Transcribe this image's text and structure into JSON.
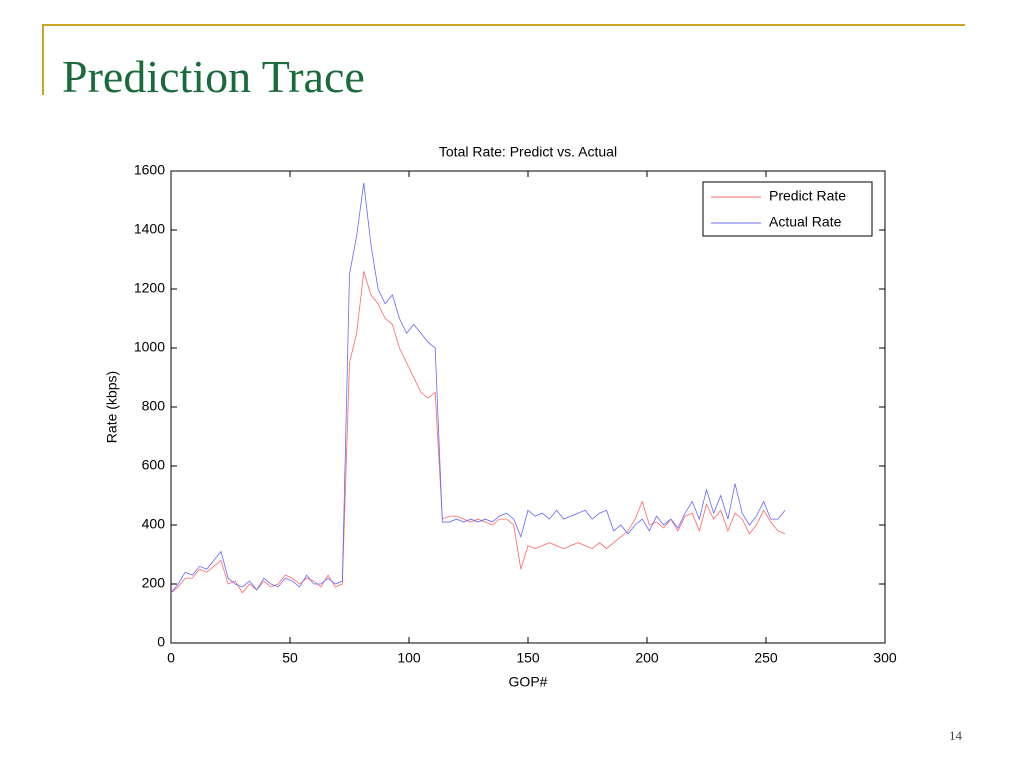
{
  "slide_title": "Prediction Trace",
  "page_number": "14",
  "chart_data": {
    "type": "line",
    "title": "Total Rate: Predict vs. Actual",
    "xlabel": "GOP#",
    "ylabel": "Rate (kbps)",
    "x": [
      0,
      3,
      6,
      9,
      12,
      15,
      18,
      21,
      24,
      27,
      30,
      33,
      36,
      39,
      42,
      45,
      48,
      51,
      54,
      57,
      60,
      63,
      66,
      69,
      72,
      75,
      78,
      81,
      84,
      87,
      90,
      93,
      96,
      99,
      102,
      105,
      108,
      111,
      114,
      117,
      120,
      123,
      126,
      129,
      132,
      135,
      138,
      141,
      144,
      147,
      150,
      153,
      156,
      159,
      162,
      165,
      168,
      171,
      174,
      177,
      180,
      183,
      186,
      189,
      192,
      195,
      198,
      201,
      204,
      207,
      210,
      213,
      216,
      219,
      222,
      225,
      228,
      231,
      234,
      237,
      240,
      243,
      246,
      249,
      252,
      255,
      258
    ],
    "series": [
      {
        "name": "Predict Rate",
        "color": "#ff6666",
        "values": [
          170,
          190,
          220,
          220,
          250,
          240,
          260,
          280,
          200,
          210,
          170,
          200,
          180,
          210,
          190,
          200,
          230,
          220,
          200,
          220,
          210,
          190,
          230,
          190,
          200,
          950,
          1050,
          1260,
          1180,
          1150,
          1100,
          1080,
          1000,
          950,
          900,
          850,
          830,
          850,
          420,
          430,
          430,
          420,
          410,
          420,
          410,
          400,
          420,
          420,
          400,
          250,
          330,
          320,
          330,
          340,
          330,
          320,
          330,
          340,
          330,
          320,
          340,
          320,
          340,
          360,
          380,
          420,
          480,
          400,
          410,
          390,
          420,
          380,
          430,
          440,
          380,
          470,
          420,
          450,
          380,
          440,
          420,
          370,
          400,
          450,
          410,
          380,
          370
        ]
      },
      {
        "name": "Actual Rate",
        "color": "#6666ff",
        "values": [
          170,
          200,
          240,
          230,
          260,
          250,
          280,
          310,
          220,
          200,
          190,
          210,
          180,
          220,
          200,
          190,
          220,
          210,
          190,
          230,
          200,
          200,
          220,
          200,
          210,
          1250,
          1380,
          1560,
          1350,
          1200,
          1150,
          1180,
          1100,
          1050,
          1080,
          1050,
          1020,
          1000,
          410,
          410,
          420,
          410,
          420,
          410,
          420,
          410,
          430,
          440,
          420,
          360,
          450,
          430,
          440,
          420,
          450,
          420,
          430,
          440,
          450,
          420,
          440,
          450,
          380,
          400,
          370,
          400,
          420,
          380,
          430,
          400,
          420,
          390,
          440,
          480,
          420,
          520,
          440,
          500,
          420,
          540,
          440,
          400,
          430,
          480,
          420,
          420,
          450
        ]
      }
    ],
    "xlim": [
      0,
      300
    ],
    "xticks": [
      0,
      50,
      100,
      150,
      200,
      250,
      300
    ],
    "ylim": [
      0,
      1600
    ],
    "yticks": [
      0,
      200,
      400,
      600,
      800,
      1000,
      1200,
      1400,
      1600
    ],
    "legend": "upper right"
  }
}
